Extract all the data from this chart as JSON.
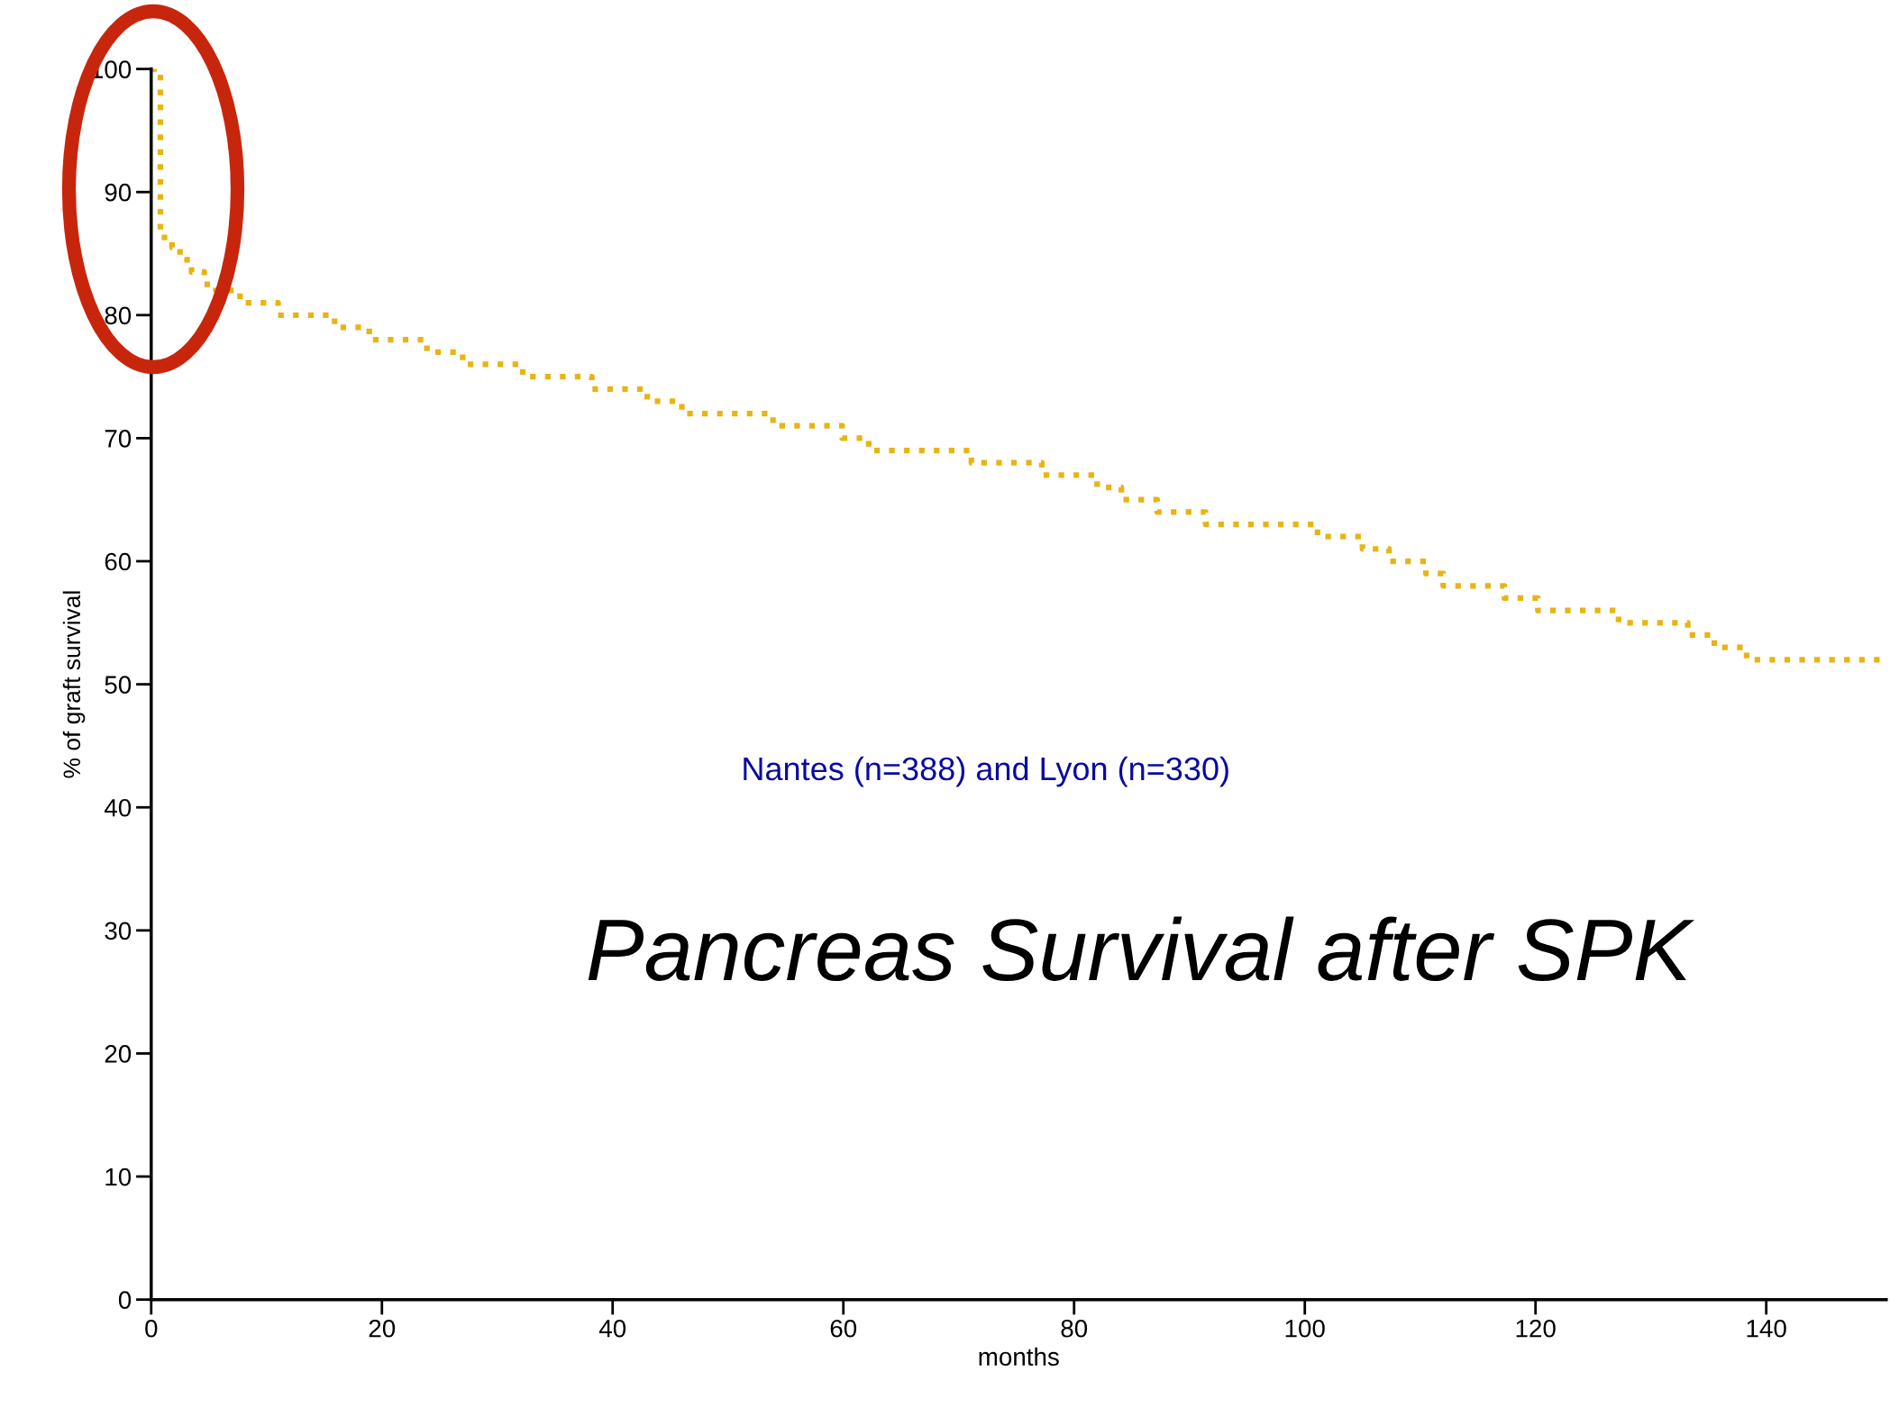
{
  "chart_data": {
    "type": "step",
    "title": "Pancreas Survival after SPK",
    "xlabel": "months",
    "ylabel": "% of graft survival",
    "annotations": [
      "Nantes (n=388) and Lyon (n=330)"
    ],
    "series": [
      {
        "color": "#e8b414",
        "x": [
          0,
          0.8,
          1.8,
          2.5,
          3.5,
          4.6,
          5.6,
          7.7,
          11,
          15.9,
          18.9,
          23.9,
          27,
          32.2,
          38.2,
          43,
          46,
          53.9,
          59.9,
          62.2,
          71.1,
          77.2,
          82,
          84.1,
          87.2,
          91.4,
          101.1,
          105,
          107.3,
          110.5,
          112,
          117.3,
          120.2,
          127.2,
          133.2,
          135.5,
          138.3,
          150.4
        ],
        "values": [
          100,
          86.3,
          85.5,
          84.5,
          83.5,
          82.5,
          82,
          81,
          80,
          79,
          78,
          77,
          76,
          75,
          74,
          73,
          72,
          71,
          70,
          69,
          68,
          67,
          66,
          65,
          64,
          63,
          62,
          61,
          60,
          59,
          58,
          57,
          56,
          55,
          54,
          53,
          52,
          52
        ]
      }
    ],
    "xlim": [
      0,
      150.4
    ],
    "ylim": [
      0,
      100
    ],
    "xticks": [
      0,
      20,
      40,
      60,
      80,
      100,
      120,
      140
    ],
    "yticks": [
      0,
      10,
      20,
      30,
      40,
      50,
      60,
      70,
      80,
      90,
      100
    ],
    "grid": false,
    "legend": false,
    "line_style": "dotted"
  }
}
